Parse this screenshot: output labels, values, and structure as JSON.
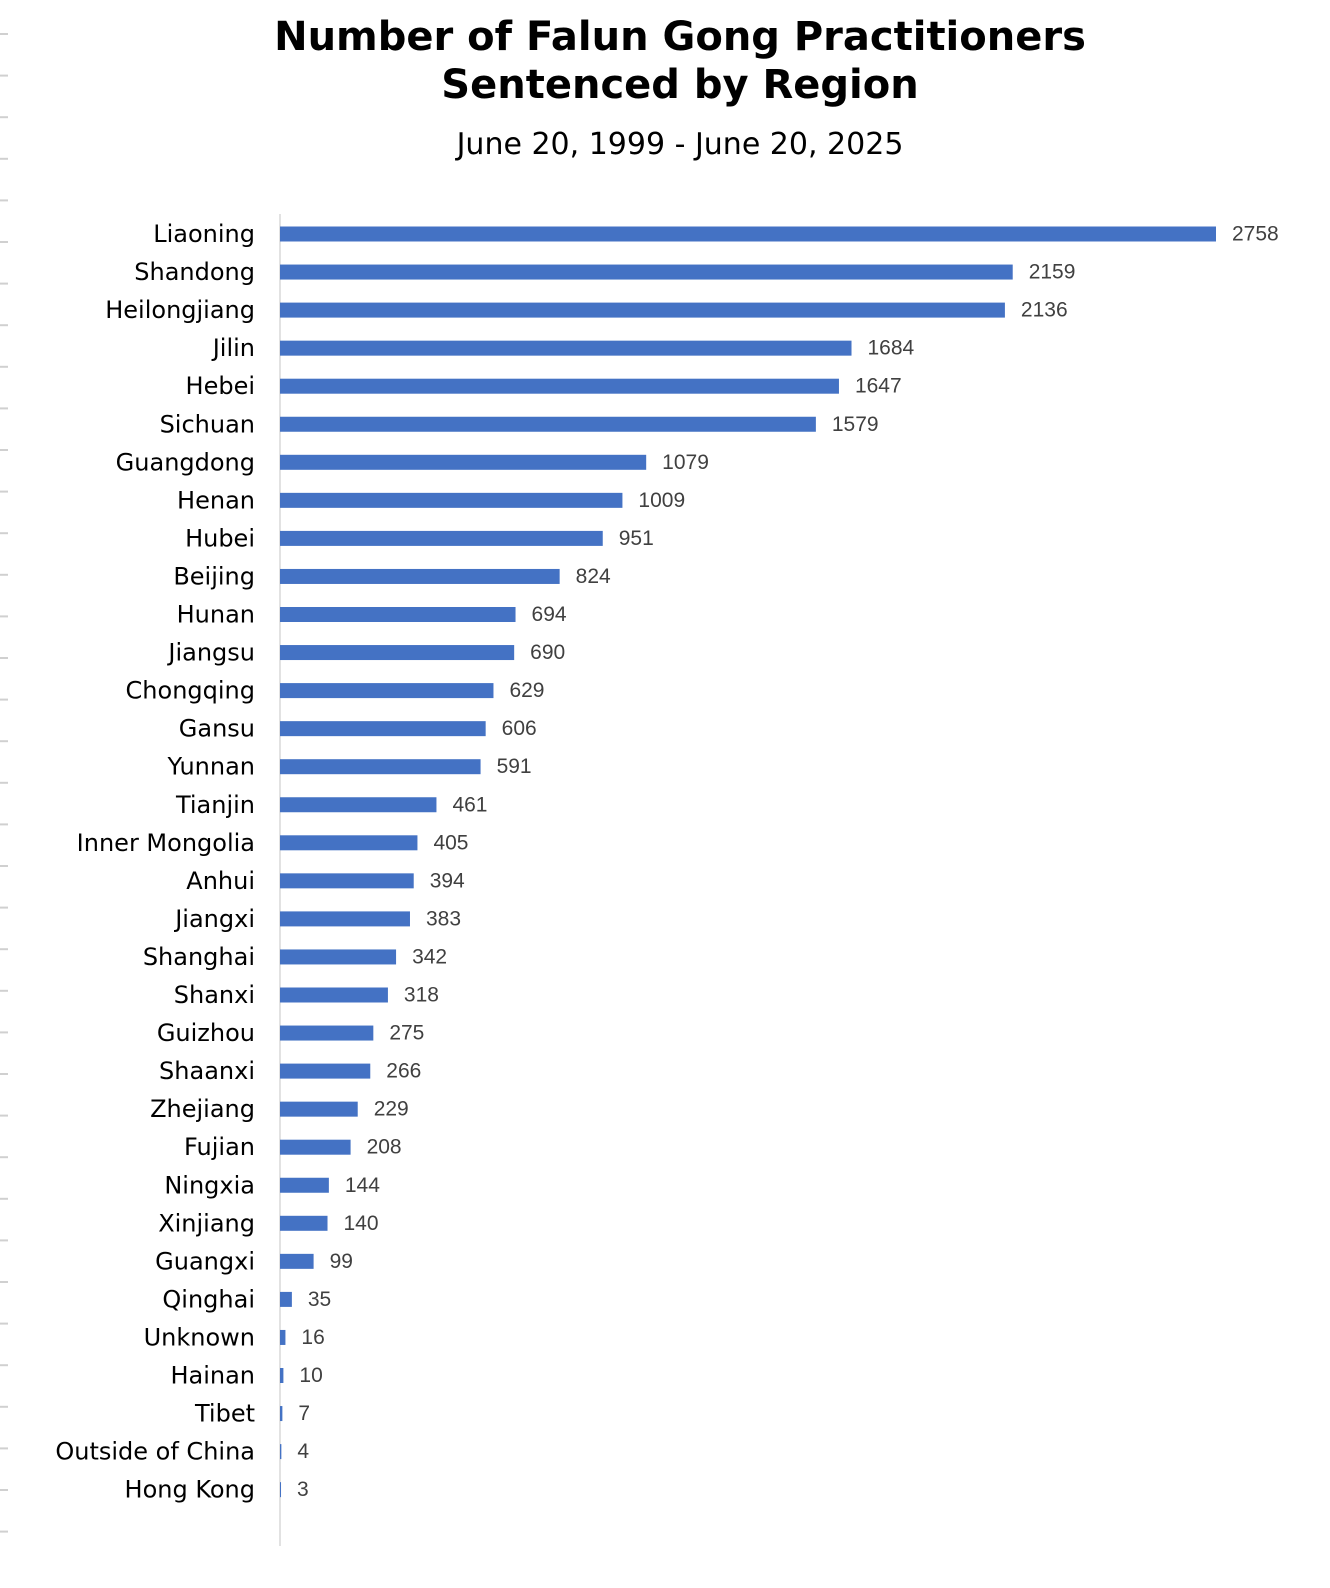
{
  "chart_data": {
    "type": "bar",
    "orientation": "horizontal",
    "title_lines": [
      "Number of Falun Gong Practitioners",
      "Sentenced by Region"
    ],
    "subtitle": "June 20, 1999 - June 20, 2025",
    "categories": [
      "Liaoning",
      "Shandong",
      "Heilongjiang",
      "Jilin",
      "Hebei",
      "Sichuan",
      "Guangdong",
      "Henan",
      "Hubei",
      "Beijing",
      "Hunan",
      "Jiangsu",
      "Chongqing",
      "Gansu",
      "Yunnan",
      "Tianjin",
      "Inner Mongolia",
      "Anhui",
      "Jiangxi",
      "Shanghai",
      "Shanxi",
      "Guizhou",
      "Shaanxi",
      "Zhejiang",
      "Fujian",
      "Ningxia",
      "Xinjiang",
      "Guangxi",
      "Qinghai",
      "Unknown",
      "Hainan",
      "Tibet",
      "Outside of China",
      "Hong Kong"
    ],
    "values": [
      2758,
      2159,
      2136,
      1684,
      1647,
      1579,
      1079,
      1009,
      951,
      824,
      694,
      690,
      629,
      606,
      591,
      461,
      405,
      394,
      383,
      342,
      318,
      275,
      266,
      229,
      208,
      144,
      140,
      99,
      35,
      16,
      10,
      7,
      4,
      3
    ],
    "value_labels": [
      "2758",
      "2159",
      "2136",
      "1684",
      "1647",
      "1579",
      "1079",
      "1009",
      "951",
      "824",
      "694",
      "690",
      "629",
      "606",
      "591",
      "461",
      "405",
      "394",
      "383",
      "342",
      "318",
      "275",
      "266",
      "229",
      "208",
      "144",
      "140",
      "99",
      "35",
      "16",
      "10",
      "7",
      "4",
      "3"
    ],
    "xlim": [
      0,
      2758
    ],
    "bar_color": "#4472c4",
    "grid": false,
    "legend": "none",
    "data_labels": "outside-end"
  }
}
